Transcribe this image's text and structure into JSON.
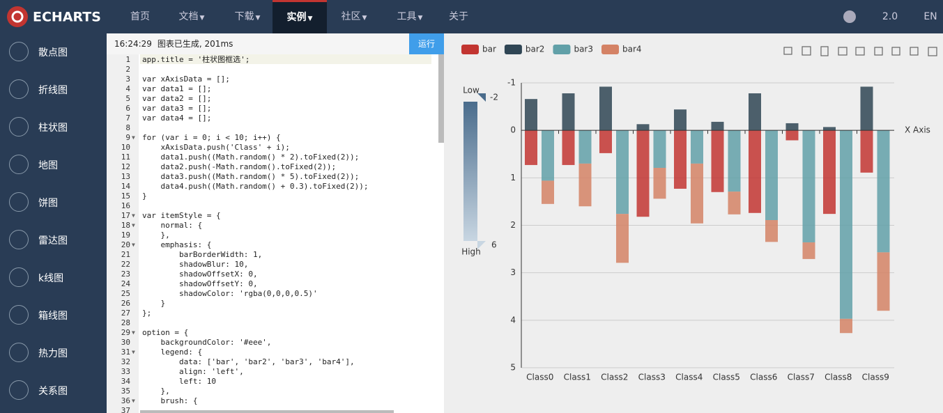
{
  "nav": {
    "logo": "ECHARTS",
    "items": [
      {
        "label": "首页"
      },
      {
        "label": "文档",
        "dropdown": true
      },
      {
        "label": "下载",
        "dropdown": true
      },
      {
        "label": "实例",
        "dropdown": true,
        "active": true
      },
      {
        "label": "社区",
        "dropdown": true
      },
      {
        "label": "工具",
        "dropdown": true
      },
      {
        "label": "关于"
      }
    ],
    "version": "2.0",
    "lang": "EN"
  },
  "sidebar": [
    "散点图",
    "折线图",
    "柱状图",
    "地图",
    "饼图",
    "雷达图",
    "k线图",
    "箱线图",
    "热力图",
    "关系图"
  ],
  "editor": {
    "status_time": "16:24:29",
    "status_text": "图表已生成, 201ms",
    "run": "运行",
    "lines": [
      {
        "n": 1,
        "text": "app.title = '柱状图框选';"
      },
      {
        "n": 2
      },
      {
        "n": 3,
        "text": "var xAxisData = [];"
      },
      {
        "n": 4,
        "text": "var data1 = [];"
      },
      {
        "n": 5,
        "text": "var data2 = [];"
      },
      {
        "n": 6,
        "text": "var data3 = [];"
      },
      {
        "n": 7,
        "text": "var data4 = [];"
      },
      {
        "n": 8
      },
      {
        "n": 9,
        "text": "for (var i = 0; i < 10; i++) {",
        "fold": true
      },
      {
        "n": 10,
        "text": "    xAxisData.push('Class' + i);"
      },
      {
        "n": 11,
        "text": "    data1.push((Math.random() * 2).toFixed(2));"
      },
      {
        "n": 12,
        "text": "    data2.push(-Math.random().toFixed(2));"
      },
      {
        "n": 13,
        "text": "    data3.push((Math.random() * 5).toFixed(2));"
      },
      {
        "n": 14,
        "text": "    data4.push((Math.random() + 0.3).toFixed(2));"
      },
      {
        "n": 15,
        "text": "}"
      },
      {
        "n": 16
      },
      {
        "n": 17,
        "text": "var itemStyle = {",
        "fold": true
      },
      {
        "n": 18,
        "text": "    normal: {",
        "fold": true
      },
      {
        "n": 19,
        "text": "    },"
      },
      {
        "n": 20,
        "text": "    emphasis: {",
        "fold": true
      },
      {
        "n": 21,
        "text": "        barBorderWidth: 1,"
      },
      {
        "n": 22,
        "text": "        shadowBlur: 10,"
      },
      {
        "n": 23,
        "text": "        shadowOffsetX: 0,"
      },
      {
        "n": 24,
        "text": "        shadowOffsetY: 0,"
      },
      {
        "n": 25,
        "text": "        shadowColor: 'rgba(0,0,0,0.5)'"
      },
      {
        "n": 26,
        "text": "    }"
      },
      {
        "n": 27,
        "text": "};"
      },
      {
        "n": 28
      },
      {
        "n": 29,
        "text": "option = {",
        "fold": true
      },
      {
        "n": 30,
        "text": "    backgroundColor: '#eee',"
      },
      {
        "n": 31,
        "text": "    legend: {",
        "fold": true
      },
      {
        "n": 32,
        "text": "        data: ['bar', 'bar2', 'bar3', 'bar4'],"
      },
      {
        "n": 33,
        "text": "        align: 'left',"
      },
      {
        "n": 34,
        "text": "        left: 10"
      },
      {
        "n": 35,
        "text": "    },"
      },
      {
        "n": 36,
        "text": "    brush: {",
        "fold": true
      },
      {
        "n": 37
      }
    ]
  },
  "chart": {
    "type": "bar",
    "categories": [
      "Class0",
      "Class1",
      "Class2",
      "Class3",
      "Class4",
      "Class5",
      "Class6",
      "Class7",
      "Class8",
      "Class9"
    ],
    "series": [
      {
        "name": "bar",
        "color": "#c23531",
        "stack": "one",
        "values": [
          0.73,
          0.73,
          0.48,
          1.82,
          1.23,
          1.3,
          1.74,
          0.21,
          1.76,
          0.89
        ]
      },
      {
        "name": "bar2",
        "color": "#2f4554",
        "stack": "one",
        "values": [
          -0.66,
          -0.78,
          -0.92,
          -0.13,
          -0.44,
          -0.18,
          -0.78,
          -0.15,
          -0.07,
          -0.92
        ]
      },
      {
        "name": "bar3",
        "color": "#61a0a8",
        "stack": "two",
        "values": [
          1.06,
          0.7,
          1.76,
          0.79,
          0.7,
          1.29,
          1.89,
          2.36,
          3.97,
          2.57
        ]
      },
      {
        "name": "bar4",
        "color": "#d48265",
        "stack": "two",
        "values": [
          0.49,
          0.9,
          1.03,
          0.65,
          1.26,
          0.48,
          0.46,
          0.35,
          0.3,
          1.23
        ]
      }
    ],
    "ylim": [
      -1,
      5
    ],
    "yticks": [
      -1,
      0,
      1,
      2,
      3,
      4,
      5
    ],
    "y_inverse": true,
    "grid": true,
    "xlabel": "X Axis",
    "visual_map": {
      "low": "Low",
      "high": "High",
      "range": [
        -2,
        6
      ]
    }
  }
}
